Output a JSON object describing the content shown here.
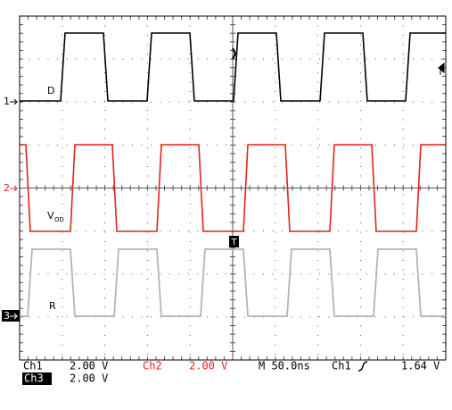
{
  "channels": [
    {
      "marker": "1",
      "label": "D"
    },
    {
      "marker": "2",
      "label": "V",
      "label_sub": "OD"
    },
    {
      "marker": "3",
      "label": "R"
    }
  ],
  "readout": {
    "ch1": "Ch1",
    "ch1_scale": "2.00 V",
    "ch2": "Ch2",
    "ch2_scale": "2.00 V",
    "timebase": "M 50.0ns",
    "trigger_source": "Ch1",
    "trigger_level": "1.64 V",
    "ch3": "Ch3",
    "ch3_scale": "2.00 V"
  },
  "trigger_marker": "T"
}
